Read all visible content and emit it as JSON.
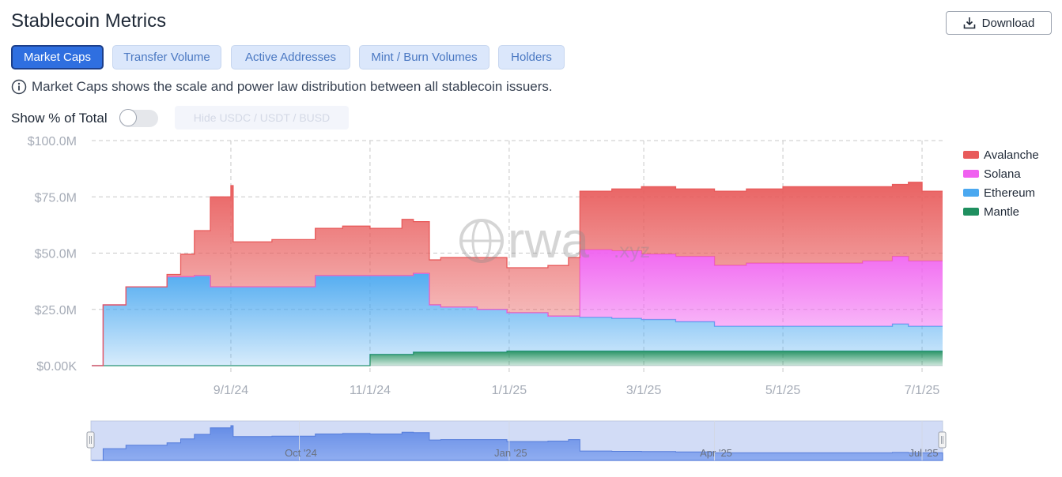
{
  "title": "Stablecoin Metrics",
  "download_label": "Download",
  "tabs": [
    {
      "label": "Market Caps",
      "active": true
    },
    {
      "label": "Transfer Volume",
      "active": false
    },
    {
      "label": "Active Addresses",
      "active": false
    },
    {
      "label": "Mint / Burn Volumes",
      "active": false
    },
    {
      "label": "Holders",
      "active": false
    }
  ],
  "info_text": "Market Caps shows the scale and power law distribution between all stablecoin issuers.",
  "show_pct_label": "Show % of Total",
  "show_pct_enabled": false,
  "hide_button_label": "Hide USDC / USDT / BUSD",
  "watermark": {
    "main": "rwa",
    "suffix": ".xyz"
  },
  "navigator": {
    "labels": [
      "Oct '24",
      "Jan '25",
      "Apr '25",
      "Jul '25"
    ]
  },
  "icons": {
    "download": "download-icon",
    "info": "info-icon",
    "watermark": "globe-icon"
  },
  "chart_data": {
    "type": "area",
    "stacked": true,
    "y_tick_labels": [
      "$0.00K",
      "$25.0M",
      "$50.0M",
      "$75.0M",
      "$100.0M"
    ],
    "ylim": [
      0,
      100
    ],
    "yunit": "M",
    "x_tick_labels": [
      "9/1/24",
      "11/1/24",
      "1/1/25",
      "3/1/25",
      "5/1/25",
      "7/1/25"
    ],
    "x_range": [
      "2024-07-02",
      "2025-07-10"
    ],
    "grid": true,
    "legend_position": "right",
    "x": [
      "2024-07-02",
      "2024-07-07",
      "2024-07-17",
      "2024-08-04",
      "2024-08-10",
      "2024-08-16",
      "2024-08-23",
      "2024-09-01",
      "2024-09-02",
      "2024-09-19",
      "2024-10-08",
      "2024-10-20",
      "2024-10-30",
      "2024-11-01",
      "2024-11-15",
      "2024-11-20",
      "2024-11-27",
      "2024-12-02",
      "2024-12-18",
      "2024-12-31",
      "2025-01-18",
      "2025-01-27",
      "2025-02-01",
      "2025-02-15",
      "2025-02-28",
      "2025-03-15",
      "2025-04-01",
      "2025-04-15",
      "2025-05-01",
      "2025-05-20",
      "2025-06-05",
      "2025-06-18",
      "2025-06-25",
      "2025-07-01",
      "2025-07-10"
    ],
    "series": [
      {
        "name": "Mantle",
        "color": "#1f8f5f",
        "values": [
          0,
          0,
          0,
          0,
          0,
          0,
          0,
          0,
          0,
          0,
          0,
          0,
          0,
          5,
          5,
          6,
          6,
          6,
          6,
          6.5,
          6.5,
          6.5,
          6.5,
          6.5,
          6.5,
          6.5,
          6.5,
          6.5,
          6.5,
          6.5,
          6.5,
          6.5,
          6.5,
          6.5,
          6.5
        ]
      },
      {
        "name": "Ethereum",
        "color": "#4aa8f0",
        "values": [
          0,
          27,
          35,
          39.5,
          39.5,
          40,
          35,
          35,
          35,
          35,
          40,
          40,
          40,
          35,
          35,
          35,
          21,
          20,
          19,
          17,
          15.5,
          15.5,
          15,
          14.5,
          14,
          13,
          11,
          11,
          11,
          11,
          11,
          12,
          11,
          11,
          11
        ]
      },
      {
        "name": "Solana",
        "color": "#f060f0",
        "values": [
          0,
          0,
          0,
          0,
          0,
          0,
          0,
          0,
          0,
          0,
          0,
          0,
          0,
          0,
          0,
          0,
          0,
          0,
          0,
          0,
          0,
          0,
          30,
          30,
          29,
          29,
          27,
          28,
          28,
          28,
          29,
          30,
          29,
          29,
          29
        ]
      },
      {
        "name": "Avalanche",
        "color": "#e85a5a",
        "values": [
          0,
          0,
          0,
          1,
          10,
          20,
          40,
          45,
          20,
          21,
          21,
          22,
          22,
          21,
          25,
          23,
          20,
          22,
          23,
          20,
          22.5,
          26,
          26,
          27.5,
          30,
          30,
          33,
          33,
          34,
          34,
          33,
          32,
          35,
          31,
          31
        ]
      }
    ]
  }
}
